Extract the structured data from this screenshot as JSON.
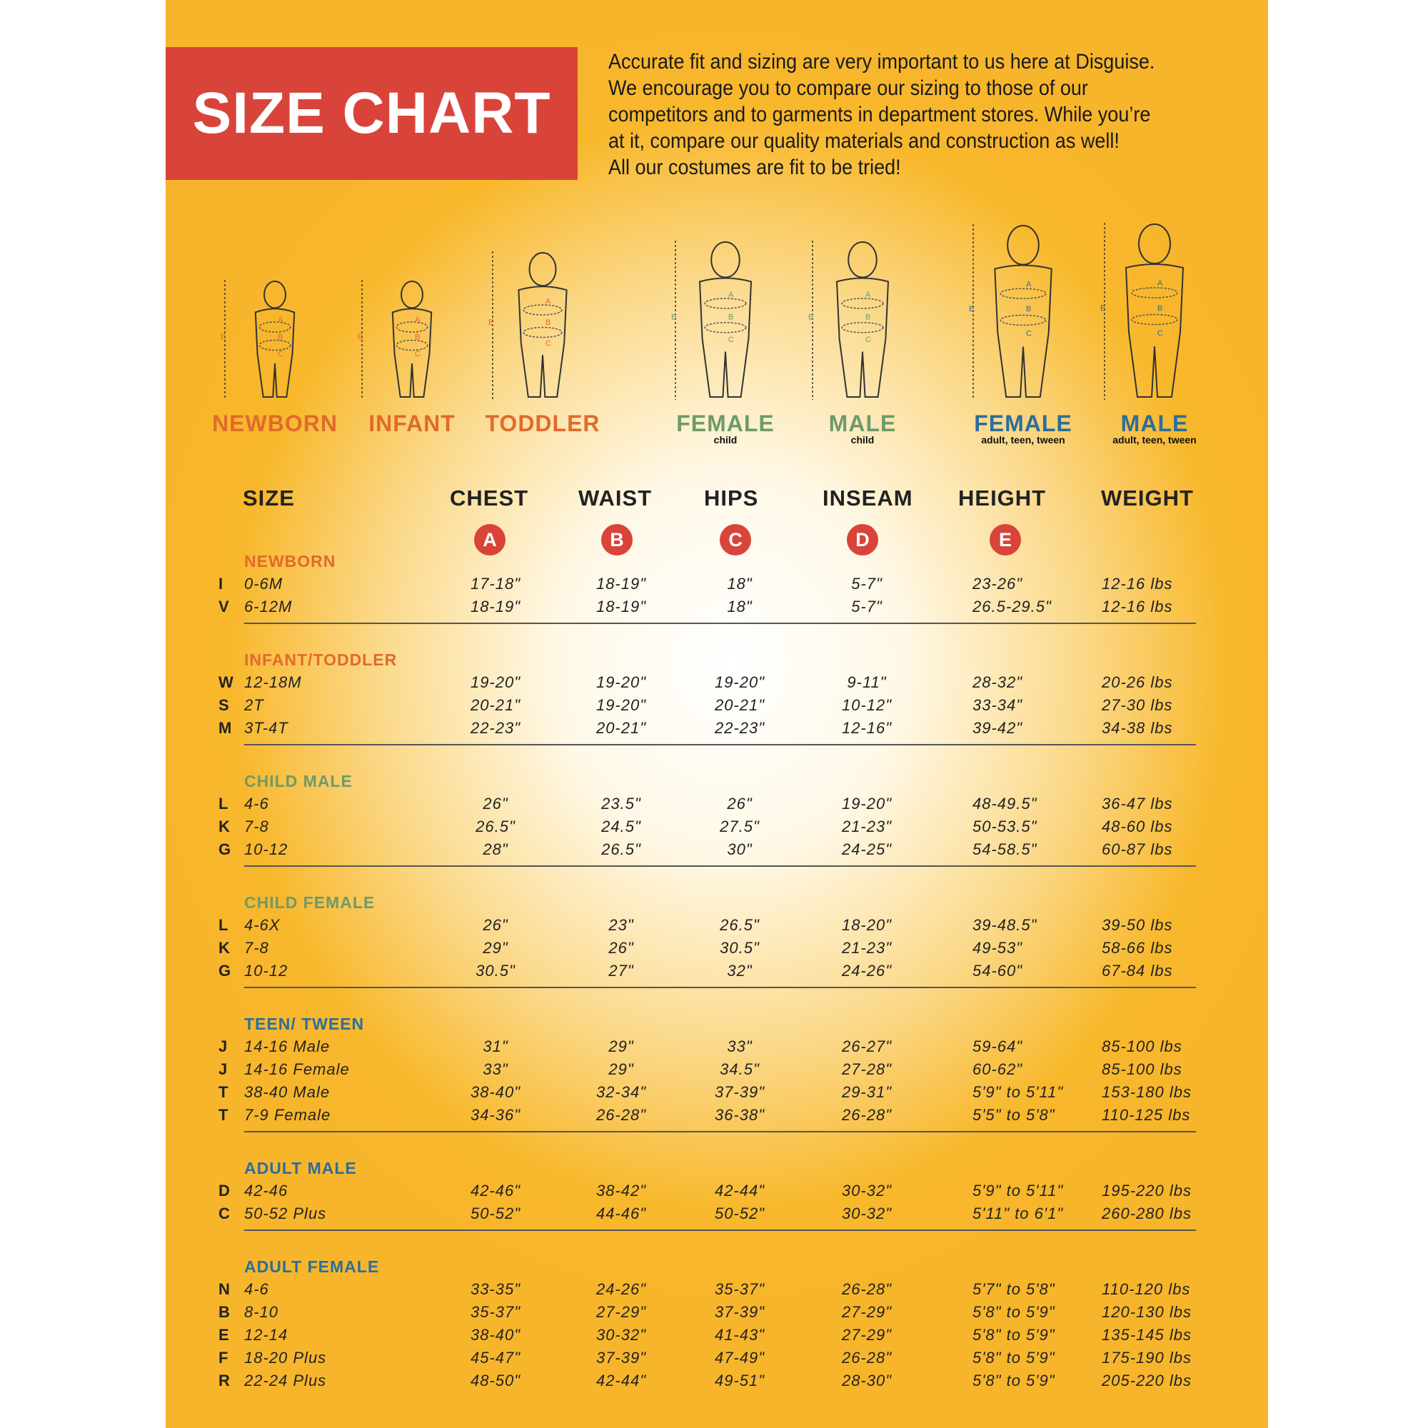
{
  "title": "SIZE CHART",
  "intro_lines": [
    "Accurate fit and sizing are very important to us here at Disguise.",
    "We encourage you to compare our sizing to those of our",
    "competitors and to garments in department stores. While you’re",
    "at it, compare our quality materials and construction as well!",
    "All our costumes are fit to be tried!"
  ],
  "colors": {
    "background": "#f7b52b",
    "title_box": "#d9443a",
    "baby": "#e06a2c",
    "child": "#6e9a6a",
    "adult": "#2c6e9a"
  },
  "figures": [
    {
      "label": "NEWBORN",
      "sub": "",
      "group": "baby"
    },
    {
      "label": "INFANT",
      "sub": "",
      "group": "baby"
    },
    {
      "label": "TODDLER",
      "sub": "",
      "group": "baby"
    },
    {
      "label": "FEMALE",
      "sub": "child",
      "group": "child"
    },
    {
      "label": "MALE",
      "sub": "child",
      "group": "child"
    },
    {
      "label": "FEMALE",
      "sub": "adult, teen, tween",
      "group": "adult"
    },
    {
      "label": "MALE",
      "sub": "adult, teen, tween",
      "group": "adult"
    }
  ],
  "measure_letters": [
    "A",
    "B",
    "C",
    "D",
    "E"
  ],
  "columns": [
    "SIZE",
    "CHEST",
    "WAIST",
    "HIPS",
    "INSEAM",
    "HEIGHT",
    "WEIGHT"
  ],
  "sections": [
    {
      "title": "NEWBORN",
      "group": "baby",
      "rows": [
        [
          "I",
          "0-6M",
          "17-18\"",
          "18-19\"",
          "18\"",
          "5-7\"",
          "23-26\"",
          "12-16 lbs"
        ],
        [
          "V",
          "6-12M",
          "18-19\"",
          "18-19\"",
          "18\"",
          "5-7\"",
          "26.5-29.5\"",
          "12-16 lbs"
        ]
      ]
    },
    {
      "title": "INFANT/TODDLER",
      "group": "baby",
      "rows": [
        [
          "W",
          "12-18M",
          "19-20\"",
          "19-20\"",
          "19-20\"",
          "9-11\"",
          "28-32\"",
          "20-26 lbs"
        ],
        [
          "S",
          "2T",
          "20-21\"",
          "19-20\"",
          "20-21\"",
          "10-12\"",
          "33-34\"",
          "27-30 lbs"
        ],
        [
          "M",
          "3T-4T",
          "22-23\"",
          "20-21\"",
          "22-23\"",
          "12-16\"",
          "39-42\"",
          "34-38 lbs"
        ]
      ]
    },
    {
      "title": "CHILD MALE",
      "group": "child",
      "rows": [
        [
          "L",
          "4-6",
          "26\"",
          "23.5\"",
          "26\"",
          "19-20\"",
          "48-49.5\"",
          "36-47 lbs"
        ],
        [
          "K",
          "7-8",
          "26.5\"",
          "24.5\"",
          "27.5\"",
          "21-23\"",
          "50-53.5\"",
          "48-60 lbs"
        ],
        [
          "G",
          "10-12",
          "28\"",
          "26.5\"",
          "30\"",
          "24-25\"",
          "54-58.5\"",
          "60-87 lbs"
        ]
      ]
    },
    {
      "title": "CHILD FEMALE",
      "group": "child",
      "rows": [
        [
          "L",
          "4-6X",
          "26\"",
          "23\"",
          "26.5\"",
          "18-20\"",
          "39-48.5\"",
          "39-50 lbs"
        ],
        [
          "K",
          "7-8",
          "29\"",
          "26\"",
          "30.5\"",
          "21-23\"",
          "49-53\"",
          "58-66 lbs"
        ],
        [
          "G",
          "10-12",
          "30.5\"",
          "27\"",
          "32\"",
          "24-26\"",
          "54-60\"",
          "67-84 lbs"
        ]
      ]
    },
    {
      "title": "TEEN/ TWEEN",
      "group": "adult",
      "rows": [
        [
          "J",
          "14-16 Male",
          "31\"",
          "29\"",
          "33\"",
          "26-27\"",
          "59-64\"",
          "85-100 lbs"
        ],
        [
          "J",
          "14-16 Female",
          "33\"",
          "29\"",
          "34.5\"",
          "27-28\"",
          "60-62\"",
          "85-100 lbs"
        ],
        [
          "T",
          "38-40 Male",
          "38-40\"",
          "32-34\"",
          "37-39\"",
          "29-31\"",
          "5'9\" to 5'11\"",
          "153-180 lbs"
        ],
        [
          "T",
          "7-9 Female",
          "34-36\"",
          "26-28\"",
          "36-38\"",
          "26-28\"",
          "5'5\" to 5'8\"",
          "110-125 lbs"
        ]
      ]
    },
    {
      "title": "ADULT MALE",
      "group": "adult",
      "rows": [
        [
          "D",
          "42-46",
          "42-46\"",
          "38-42\"",
          "42-44\"",
          "30-32\"",
          "5'9\" to 5'11\"",
          "195-220 lbs"
        ],
        [
          "C",
          "50-52 Plus",
          "50-52\"",
          "44-46\"",
          "50-52\"",
          "30-32\"",
          "5'11\" to 6'1\"",
          "260-280 lbs"
        ]
      ]
    },
    {
      "title": "ADULT FEMALE",
      "group": "adult",
      "rows": [
        [
          "N",
          "4-6",
          "33-35\"",
          "24-26\"",
          "35-37\"",
          "26-28\"",
          "5'7\" to 5'8\"",
          "110-120 lbs"
        ],
        [
          "B",
          "8-10",
          "35-37\"",
          "27-29\"",
          "37-39\"",
          "27-29\"",
          "5'8\" to 5'9\"",
          "120-130 lbs"
        ],
        [
          "E",
          "12-14",
          "38-40\"",
          "30-32\"",
          "41-43\"",
          "27-29\"",
          "5'8\" to 5'9\"",
          "135-145 lbs"
        ],
        [
          "F",
          "18-20 Plus",
          "45-47\"",
          "37-39\"",
          "47-49\"",
          "26-28\"",
          "5'8\" to 5'9\"",
          "175-190 lbs"
        ],
        [
          "R",
          "22-24 Plus",
          "48-50\"",
          "42-44\"",
          "49-51\"",
          "28-30\"",
          "5'8\" to 5'9\"",
          "205-220 lbs"
        ]
      ]
    }
  ]
}
